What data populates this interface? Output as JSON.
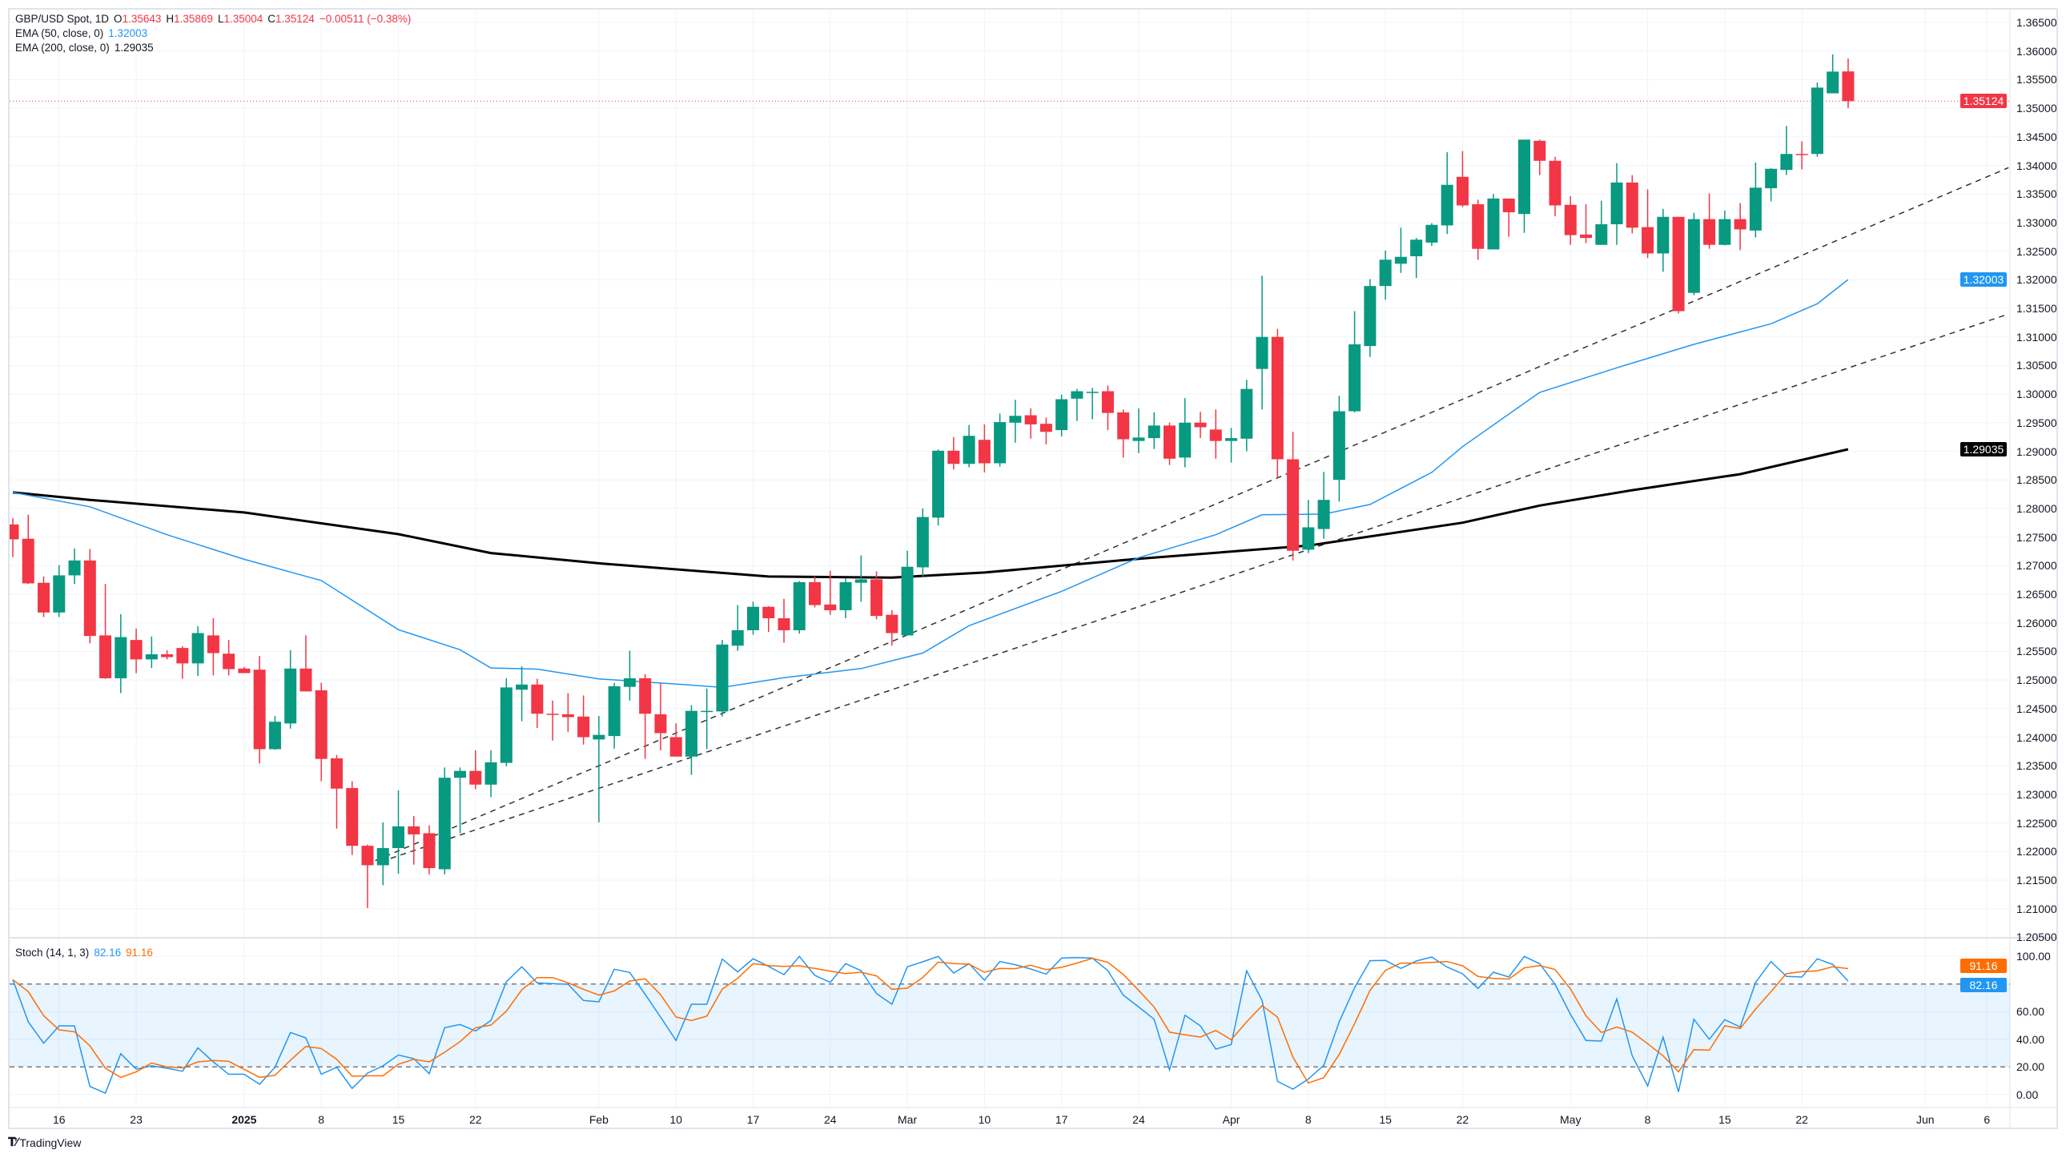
{
  "legend": {
    "symbol": "GBP/USD Spot, 1D",
    "o_label": "O",
    "open": "1.35643",
    "h_label": "H",
    "high": "1.35869",
    "l_label": "L",
    "low": "1.35004",
    "c_label": "C",
    "close": "1.35124",
    "change": "−0.00511 (−0.38%)",
    "ema50_label": "EMA (50, close, 0)",
    "ema50_value": "1.32003",
    "ema200_label": "EMA (200, close, 0)",
    "ema200_value": "1.29035",
    "stoch_label": "Stoch (14, 1, 3)",
    "stoch_k_value": "82.16",
    "stoch_d_value": "91.16"
  },
  "badges": {
    "last_price": "1.35124",
    "ema50": "1.32003",
    "ema200": "1.29035",
    "stoch_d": "91.16",
    "stoch_k": "82.16"
  },
  "colors": {
    "up": "#089981",
    "down": "#f23645",
    "ema50": "#2196f3",
    "ema200": "#000000",
    "stoch_k": "#2196f3",
    "stoch_d": "#ff6d00",
    "trendline": "#333333",
    "grid": "#f0f3fa"
  },
  "footer": {
    "brand": "TradingView"
  },
  "chart_data": {
    "type": "candlestick",
    "title": "GBP/USD Spot, 1D",
    "first_bar_date": "2024-12-11",
    "last_bar_date": "2025-05-27",
    "price_axis": {
      "range": [
        1.205,
        1.365
      ],
      "labels": [
        "1.36500",
        "1.36000",
        "1.35500",
        "1.35000",
        "1.34500",
        "1.34000",
        "1.33500",
        "1.33000",
        "1.32500",
        "1.32000",
        "1.31500",
        "1.31000",
        "1.30500",
        "1.30000",
        "1.29500",
        "1.29000",
        "1.28500",
        "1.28000",
        "1.27500",
        "1.27000",
        "1.26500",
        "1.26000",
        "1.25500",
        "1.25000",
        "1.24500",
        "1.24000",
        "1.23500",
        "1.23000",
        "1.22500",
        "1.22000",
        "1.21500",
        "1.21000",
        "1.20500"
      ]
    },
    "time_axis": [
      {
        "bar": 3,
        "label": "16"
      },
      {
        "bar": 8,
        "label": "23"
      },
      {
        "bar": 15,
        "label": "2025"
      },
      {
        "bar": 20,
        "label": "8"
      },
      {
        "bar": 25,
        "label": "15"
      },
      {
        "bar": 30,
        "label": "22"
      },
      {
        "bar": 38,
        "label": "Feb"
      },
      {
        "bar": 43,
        "label": "10"
      },
      {
        "bar": 48,
        "label": "17"
      },
      {
        "bar": 53,
        "label": "24"
      },
      {
        "bar": 58,
        "label": "Mar"
      },
      {
        "bar": 63,
        "label": "10"
      },
      {
        "bar": 68,
        "label": "17"
      },
      {
        "bar": 73,
        "label": "24"
      },
      {
        "bar": 79,
        "label": "Apr"
      },
      {
        "bar": 84,
        "label": "8"
      },
      {
        "bar": 89,
        "label": "15"
      },
      {
        "bar": 94,
        "label": "22"
      },
      {
        "bar": 101,
        "label": "May"
      },
      {
        "bar": 106,
        "label": "8"
      },
      {
        "bar": 111,
        "label": "15"
      },
      {
        "bar": 116,
        "label": "22"
      },
      {
        "bar": 124,
        "label": "Jun"
      },
      {
        "bar": 128,
        "label": "6"
      }
    ],
    "ohlc_columns": [
      "open",
      "high",
      "low",
      "close"
    ],
    "ohlc": [
      [
        1.2772,
        1.2783,
        1.2715,
        1.2746
      ],
      [
        1.2747,
        1.2789,
        1.2668,
        1.2669
      ],
      [
        1.267,
        1.2681,
        1.261,
        1.2618
      ],
      [
        1.2618,
        1.2701,
        1.261,
        1.2683
      ],
      [
        1.2683,
        1.273,
        1.2668,
        1.2709
      ],
      [
        1.2709,
        1.2729,
        1.2564,
        1.2577
      ],
      [
        1.2578,
        1.2668,
        1.2502,
        1.2503
      ],
      [
        1.2503,
        1.2615,
        1.2477,
        1.2575
      ],
      [
        1.257,
        1.259,
        1.2512,
        1.2536
      ],
      [
        1.2536,
        1.2576,
        1.2521,
        1.2545
      ],
      [
        1.2545,
        1.2552,
        1.2536,
        1.254
      ],
      [
        1.2556,
        1.2559,
        1.2502,
        1.2529
      ],
      [
        1.2529,
        1.2594,
        1.2507,
        1.2582
      ],
      [
        1.2578,
        1.2608,
        1.2508,
        1.2547
      ],
      [
        1.2546,
        1.257,
        1.2508,
        1.2519
      ],
      [
        1.252,
        1.2523,
        1.2512,
        1.2512
      ],
      [
        1.2518,
        1.2542,
        1.2354,
        1.2379
      ],
      [
        1.2379,
        1.2437,
        1.2378,
        1.2427
      ],
      [
        1.2424,
        1.2552,
        1.2415,
        1.252
      ],
      [
        1.252,
        1.2578,
        1.248,
        1.248
      ],
      [
        1.2482,
        1.2495,
        1.2323,
        1.2362
      ],
      [
        1.2363,
        1.2369,
        1.224,
        1.231
      ],
      [
        1.2311,
        1.2323,
        1.2194,
        1.221
      ],
      [
        1.221,
        1.2212,
        1.2101,
        1.2176
      ],
      [
        1.2176,
        1.2251,
        1.2141,
        1.2206
      ],
      [
        1.2206,
        1.2307,
        1.2161,
        1.2244
      ],
      [
        1.2244,
        1.2262,
        1.2177,
        1.223
      ],
      [
        1.2232,
        1.2246,
        1.216,
        1.2171
      ],
      [
        1.2169,
        1.2347,
        1.216,
        1.2329
      ],
      [
        1.2329,
        1.2347,
        1.2232,
        1.2341
      ],
      [
        1.2341,
        1.2377,
        1.2309,
        1.2317
      ],
      [
        1.2317,
        1.2377,
        1.2295,
        1.2356
      ],
      [
        1.2355,
        1.2503,
        1.2349,
        1.2487
      ],
      [
        1.2483,
        1.2524,
        1.2428,
        1.2492
      ],
      [
        1.2492,
        1.2502,
        1.2416,
        1.2441
      ],
      [
        1.2441,
        1.2464,
        1.2394,
        1.244
      ],
      [
        1.244,
        1.2477,
        1.2409,
        1.2435
      ],
      [
        1.2436,
        1.2473,
        1.2387,
        1.24
      ],
      [
        1.2396,
        1.2437,
        1.2251,
        1.2404
      ],
      [
        1.2402,
        1.2495,
        1.238,
        1.2489
      ],
      [
        1.2488,
        1.2551,
        1.2464,
        1.2503
      ],
      [
        1.2503,
        1.251,
        1.2362,
        1.2441
      ],
      [
        1.244,
        1.2495,
        1.2377,
        1.2407
      ],
      [
        1.24,
        1.2424,
        1.2366,
        1.2366
      ],
      [
        1.2366,
        1.2456,
        1.2334,
        1.2446
      ],
      [
        1.2445,
        1.2485,
        1.2379,
        1.2446
      ],
      [
        1.2445,
        1.257,
        1.2436,
        1.2562
      ],
      [
        1.256,
        1.2631,
        1.2551,
        1.2587
      ],
      [
        1.2587,
        1.2637,
        1.2579,
        1.2628
      ],
      [
        1.2628,
        1.2629,
        1.2584,
        1.2608
      ],
      [
        1.2608,
        1.2642,
        1.2565,
        1.2587
      ],
      [
        1.2587,
        1.2673,
        1.2581,
        1.2671
      ],
      [
        1.2671,
        1.2681,
        1.2627,
        1.2631
      ],
      [
        1.2632,
        1.2691,
        1.2614,
        1.2622
      ],
      [
        1.2622,
        1.2678,
        1.2608,
        1.2671
      ],
      [
        1.267,
        1.2718,
        1.2637,
        1.2676
      ],
      [
        1.2676,
        1.269,
        1.2606,
        1.2612
      ],
      [
        1.2614,
        1.2622,
        1.256,
        1.2582
      ],
      [
        1.2578,
        1.2726,
        1.2578,
        1.2698
      ],
      [
        1.2697,
        1.28,
        1.2681,
        1.2785
      ],
      [
        1.2784,
        1.2903,
        1.277,
        1.2901
      ],
      [
        1.2901,
        1.2925,
        1.2868,
        1.2878
      ],
      [
        1.2878,
        1.2946,
        1.2872,
        1.2927
      ],
      [
        1.292,
        1.2947,
        1.2863,
        1.2879
      ],
      [
        1.2879,
        1.2966,
        1.2873,
        1.2951
      ],
      [
        1.295,
        1.299,
        1.2915,
        1.2962
      ],
      [
        1.2963,
        1.2975,
        1.2922,
        1.2947
      ],
      [
        1.2948,
        1.2959,
        1.2912,
        1.2934
      ],
      [
        1.2937,
        1.2999,
        1.2926,
        1.2991
      ],
      [
        1.2992,
        1.3009,
        1.2953,
        1.3005
      ],
      [
        1.3003,
        1.3011,
        1.2956,
        1.3004
      ],
      [
        1.3005,
        1.3015,
        1.2937,
        1.2967
      ],
      [
        1.2968,
        1.2973,
        1.2889,
        1.2921
      ],
      [
        1.2918,
        1.2975,
        1.2897,
        1.2924
      ],
      [
        1.2923,
        1.2968,
        1.2904,
        1.2945
      ],
      [
        1.2945,
        1.295,
        1.2876,
        1.2887
      ],
      [
        1.2889,
        1.2993,
        1.2872,
        1.295
      ],
      [
        1.295,
        1.2969,
        1.2923,
        1.2942
      ],
      [
        1.2938,
        1.2973,
        1.2887,
        1.2918
      ],
      [
        1.2918,
        1.2941,
        1.288,
        1.2923
      ],
      [
        1.2922,
        1.3025,
        1.29,
        1.3009
      ],
      [
        1.3044,
        1.3207,
        1.2973,
        1.31
      ],
      [
        1.31,
        1.3114,
        1.2854,
        1.2886
      ],
      [
        1.2886,
        1.2934,
        1.2709,
        1.2726
      ],
      [
        1.2728,
        1.2815,
        1.2722,
        1.2767
      ],
      [
        1.2764,
        1.2864,
        1.2747,
        1.2815
      ],
      [
        1.285,
        1.2997,
        1.2812,
        1.297
      ],
      [
        1.297,
        1.3145,
        1.2968,
        1.3087
      ],
      [
        1.3084,
        1.3201,
        1.3065,
        1.3189
      ],
      [
        1.3189,
        1.3251,
        1.3165,
        1.3235
      ],
      [
        1.3228,
        1.3291,
        1.3212,
        1.324
      ],
      [
        1.3241,
        1.3273,
        1.3203,
        1.327
      ],
      [
        1.3265,
        1.3299,
        1.3259,
        1.3296
      ],
      [
        1.3295,
        1.3423,
        1.328,
        1.3366
      ],
      [
        1.338,
        1.3425,
        1.3327,
        1.333
      ],
      [
        1.3332,
        1.334,
        1.3235,
        1.3254
      ],
      [
        1.3253,
        1.335,
        1.3253,
        1.3342
      ],
      [
        1.3342,
        1.3342,
        1.3275,
        1.3318
      ],
      [
        1.3315,
        1.3445,
        1.3282,
        1.3445
      ],
      [
        1.3443,
        1.3445,
        1.3383,
        1.3408
      ],
      [
        1.3408,
        1.3415,
        1.3311,
        1.333
      ],
      [
        1.3331,
        1.3346,
        1.3261,
        1.3278
      ],
      [
        1.3279,
        1.3332,
        1.3264,
        1.3273
      ],
      [
        1.3261,
        1.3338,
        1.3261,
        1.3297
      ],
      [
        1.3297,
        1.3404,
        1.3261,
        1.337
      ],
      [
        1.337,
        1.3383,
        1.3281,
        1.3291
      ],
      [
        1.3292,
        1.3358,
        1.3238,
        1.3246
      ],
      [
        1.3246,
        1.3324,
        1.3214,
        1.331
      ],
      [
        1.331,
        1.331,
        1.3141,
        1.3145
      ],
      [
        1.3177,
        1.3317,
        1.3173,
        1.3306
      ],
      [
        1.3306,
        1.3351,
        1.3254,
        1.3261
      ],
      [
        1.3261,
        1.3321,
        1.326,
        1.3306
      ],
      [
        1.3306,
        1.3334,
        1.3252,
        1.3288
      ],
      [
        1.3286,
        1.3405,
        1.3274,
        1.3361
      ],
      [
        1.336,
        1.3395,
        1.3337,
        1.3394
      ],
      [
        1.3392,
        1.3469,
        1.3383,
        1.342
      ],
      [
        1.342,
        1.3442,
        1.3393,
        1.3419
      ],
      [
        1.342,
        1.3545,
        1.3415,
        1.3536
      ],
      [
        1.3526,
        1.3594,
        1.3526,
        1.3564
      ],
      [
        1.35643,
        1.35869,
        1.35004,
        1.35124
      ]
    ],
    "ema50": [
      [
        0,
        1.2828
      ],
      [
        5,
        1.2803
      ],
      [
        10,
        1.2754
      ],
      [
        15,
        1.2711
      ],
      [
        20,
        1.2674
      ],
      [
        25,
        1.2588
      ],
      [
        29,
        1.2553
      ],
      [
        31,
        1.2521
      ],
      [
        34,
        1.2519
      ],
      [
        38,
        1.2502
      ],
      [
        44,
        1.2491
      ],
      [
        46,
        1.2487
      ],
      [
        50,
        1.2504
      ],
      [
        55,
        1.252
      ],
      [
        59,
        1.2547
      ],
      [
        62,
        1.2595
      ],
      [
        68,
        1.2655
      ],
      [
        73,
        1.2714
      ],
      [
        78,
        1.2754
      ],
      [
        81,
        1.2789
      ],
      [
        85,
        1.279
      ],
      [
        88,
        1.2807
      ],
      [
        92,
        1.2863
      ],
      [
        94,
        1.2908
      ],
      [
        99,
        1.3003
      ],
      [
        104,
        1.3046
      ],
      [
        109,
        1.3087
      ],
      [
        114,
        1.3123
      ],
      [
        117,
        1.3158
      ],
      [
        119,
        1.32003
      ]
    ],
    "ema200": [
      [
        0,
        1.2828
      ],
      [
        5,
        1.2815
      ],
      [
        15,
        1.2793
      ],
      [
        25,
        1.2755
      ],
      [
        31,
        1.2722
      ],
      [
        38,
        1.2704
      ],
      [
        49,
        1.2681
      ],
      [
        57,
        1.2679
      ],
      [
        63,
        1.2688
      ],
      [
        73,
        1.2712
      ],
      [
        84,
        1.2735
      ],
      [
        94,
        1.2775
      ],
      [
        99,
        1.2805
      ],
      [
        105,
        1.2832
      ],
      [
        112,
        1.286
      ],
      [
        119,
        1.29035
      ]
    ],
    "trendlines": [
      {
        "name": "upper-trendline",
        "from": [
          23.5,
          1.2184
        ],
        "to": [
          129.4,
          1.3396
        ]
      },
      {
        "name": "lower-trendline",
        "from": [
          24.5,
          1.2188
        ],
        "to": [
          129.4,
          1.314
        ]
      }
    ],
    "stochastic": {
      "range": [
        0,
        100
      ],
      "bands": [
        20,
        80
      ],
      "axis_labels": [
        {
          "value": 100,
          "label": "100.00"
        },
        {
          "value": 60,
          "label": "60.00"
        },
        {
          "value": 40,
          "label": "40.00"
        },
        {
          "value": 20,
          "label": "20.00"
        },
        {
          "value": 0,
          "label": "0.00"
        }
      ],
      "k": [
        83.2,
        52.6,
        37.1,
        49.7,
        49.7,
        5.8,
        1.0,
        29.6,
        18.4,
        20.7,
        19.0,
        16.8,
        33.8,
        23.6,
        14.7,
        14.7,
        7.4,
        19.7,
        44.9,
        41.0,
        14.7,
        19.7,
        4.4,
        15.5,
        20.7,
        28.6,
        25.9,
        15.1,
        48.4,
        50.7,
        46.0,
        53.6,
        81.6,
        92.5,
        80.8,
        80.3,
        79.9,
        68.1,
        67.1,
        90.7,
        88.4,
        72.5,
        56.1,
        39.1,
        65.4,
        65.4,
        98.1,
        88.8,
        98.3,
        92.8,
        86.8,
        100,
        86.3,
        81.2,
        94.8,
        89.7,
        73.1,
        65.4,
        92.5,
        96.1,
        100,
        88.0,
        94.8,
        82.8,
        96.3,
        94.0,
        90.9,
        87.2,
        98.8,
        99.2,
        98.8,
        89.7,
        72.0,
        63.4,
        54.5,
        17.8,
        57.4,
        49.7,
        32.9,
        36.2,
        89.6,
        68.1,
        9.5,
        3.9,
        11.2,
        21.1,
        52.6,
        77.4,
        96.9,
        97.1,
        91.3,
        96.7,
        99.6,
        92.3,
        87.4,
        76.8,
        88.6,
        85.1,
        100,
        94.8,
        79.7,
        58.0,
        39.1,
        38.7,
        69.2,
        28.0,
        6.2,
        41.6,
        1.9,
        54.5,
        40.0,
        54.2,
        48.9,
        81.2,
        96.3,
        85.5,
        85.1,
        98.3,
        94.2,
        82.16
      ],
      "d": [
        83.2,
        74.5,
        57.1,
        46.8,
        45.5,
        35.2,
        19.0,
        12.4,
        16.4,
        22.8,
        19.9,
        19.3,
        23.6,
        24.6,
        24.0,
        18.2,
        12.4,
        13.9,
        24.8,
        34.8,
        33.3,
        25.5,
        13.2,
        13.5,
        13.5,
        21.9,
        25.5,
        23.6,
        30.6,
        38.3,
        48.4,
        50.3,
        60.3,
        75.8,
        84.7,
        84.7,
        80.9,
        76.2,
        72.0,
        75.0,
        82.2,
        83.8,
        72.3,
        56.1,
        53.6,
        56.7,
        76.4,
        84.1,
        94.8,
        93.4,
        92.8,
        93.2,
        91.3,
        89.4,
        87.6,
        88.6,
        85.9,
        76.2,
        77.0,
        84.7,
        95.9,
        94.8,
        94.4,
        88.6,
        91.3,
        91.1,
        93.6,
        90.5,
        92.1,
        95.2,
        98.6,
        95.7,
        87.0,
        75.4,
        63.4,
        45.1,
        43.3,
        41.6,
        46.4,
        39.7,
        52.6,
        64.4,
        56.1,
        27.1,
        8.3,
        12.2,
        29.0,
        51.3,
        75.4,
        89.9,
        95.2,
        95.2,
        95.7,
        96.3,
        93.2,
        85.5,
        84.1,
        83.6,
        91.7,
        93.4,
        90.5,
        76.4,
        57.1,
        44.9,
        48.9,
        45.1,
        36.8,
        28.0,
        16.4,
        32.5,
        32.1,
        49.7,
        47.8,
        61.9,
        74.5,
        87.6,
        89.0,
        89.6,
        92.5,
        91.16
      ]
    }
  }
}
